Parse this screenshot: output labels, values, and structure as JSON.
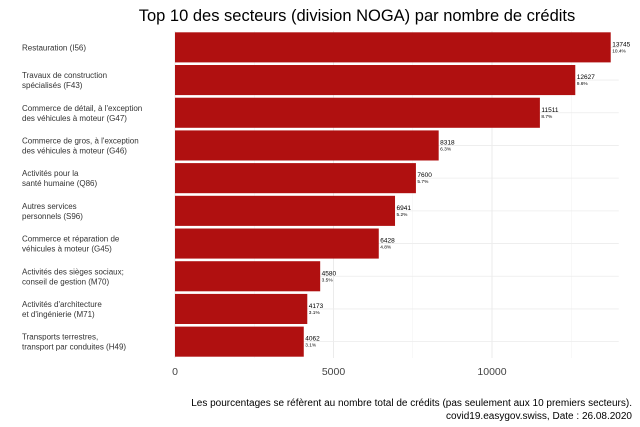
{
  "chart_data": {
    "type": "bar",
    "orientation": "horizontal",
    "title": "Top 10 des secteurs (division NOGA) par nombre de crédits",
    "xlabel": "",
    "ylabel": "",
    "xlim": [
      0,
      14000
    ],
    "xticks": [
      0,
      5000,
      10000
    ],
    "xtick_labels": [
      "0",
      "5000",
      "10000"
    ],
    "grid": true,
    "bar_color": "#b01010",
    "categories": [
      [
        "Restauration (I56)"
      ],
      [
        "Travaux de construction",
        "spécialisés (F43)"
      ],
      [
        "Commerce de détail, à l'exception",
        "des véhicules à moteur (G47)"
      ],
      [
        "Commerce de gros, à l'exception",
        "des véhicules à moteur (G46)"
      ],
      [
        "Activités pour la",
        "santé humaine (Q86)"
      ],
      [
        "Autres services",
        "personnels (S96)"
      ],
      [
        "Commerce et réparation de",
        "véhicules à moteur (G45)"
      ],
      [
        "Activités des sièges sociaux;",
        "conseil de gestion (M70)"
      ],
      [
        "Activités d'architecture",
        "et d'ingénierie (M71)"
      ],
      [
        "Transports terrestres,",
        "transport par conduites (H49)"
      ]
    ],
    "values": [
      13745,
      12627,
      11511,
      8318,
      7600,
      6941,
      6428,
      4580,
      4173,
      4062
    ],
    "percent_labels": [
      "10.4%",
      "9.6%",
      "8.7%",
      "6.3%",
      "5.7%",
      "5.2%",
      "4.8%",
      "3.5%",
      "3.1%",
      "3.1%"
    ],
    "captions": [
      "Les pourcentages se réfèrent au nombre total de crédits (pas seulement aux 10 premiers secteurs).",
      "covid19.easygov.swiss, Date : 26.08.2020"
    ]
  }
}
